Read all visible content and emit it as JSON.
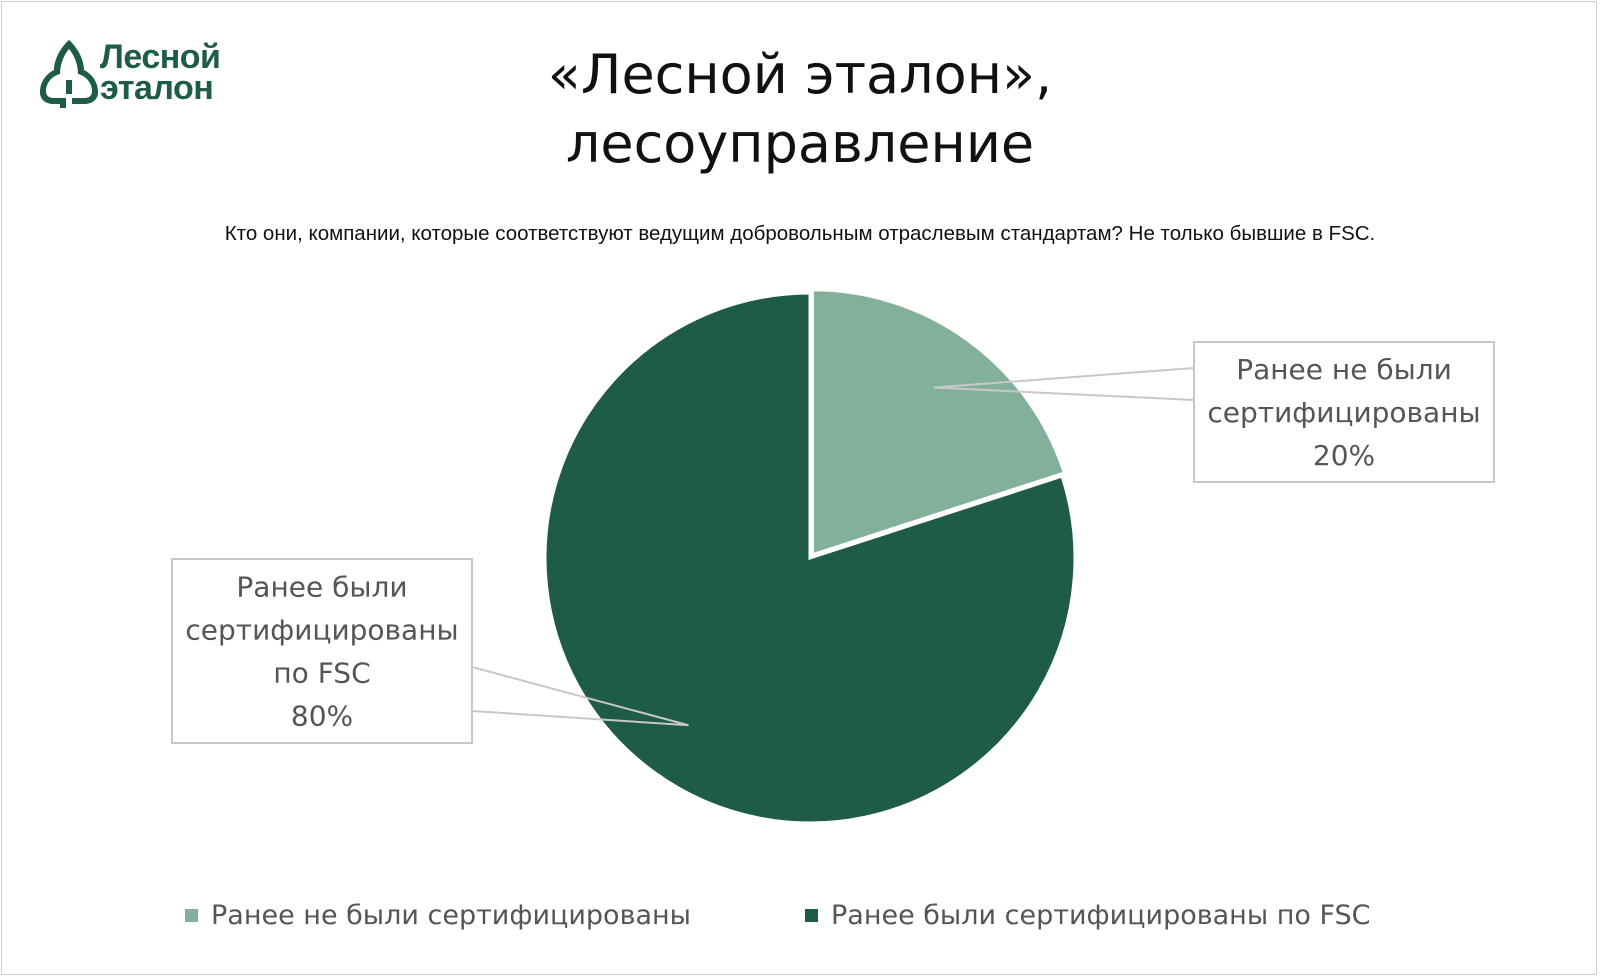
{
  "logo": {
    "line1": "Лесной",
    "line2": "эталон",
    "icon": "tree-icon",
    "color": "#1f5c47"
  },
  "title": {
    "line1": "«Лесной эталон»,",
    "line2": "лесоуправление"
  },
  "subtitle": "Кто они, компании, которые соответствуют ведущим добровольным отраслевым стандартам? Не только бывшие в FSC.",
  "chart_data": {
    "type": "pie",
    "title": "«Лесной эталон», лесоуправление",
    "subtitle": "Кто они, компании, которые соответствуют ведущим добровольным отраслевым стандартам? Не только бывшие в FSC.",
    "start_angle_deg": 0,
    "direction": "clockwise",
    "legend_position": "bottom",
    "slices": [
      {
        "name": "Ранее не были сертифицированы",
        "value": 20,
        "value_label": "20%",
        "label_lines": [
          "Ранее не были",
          "сертифицированы",
          "20%"
        ],
        "color": "#82b09a",
        "label_side": "right",
        "exploded": true
      },
      {
        "name": "Ранее были сертифицированы по FSC",
        "value": 80,
        "value_label": "80%",
        "label_lines": [
          "Ранее были",
          "сертифицированы",
          "по FSC",
          "80%"
        ],
        "color": "#1f5c47",
        "label_side": "left",
        "exploded": false
      }
    ]
  }
}
